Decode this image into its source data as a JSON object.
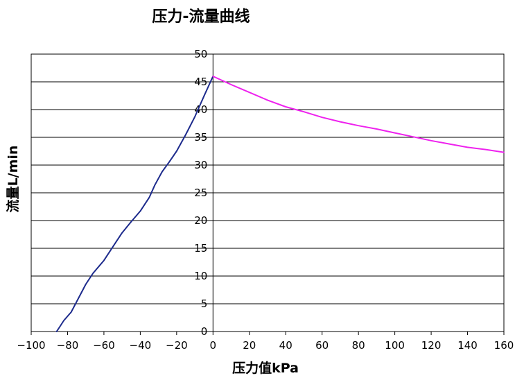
{
  "chart_data": {
    "type": "line",
    "title": "压力-流量曲线",
    "xlabel": "压力值kPa",
    "ylabel": "流量L/min",
    "xlim": [
      -100,
      160
    ],
    "ylim": [
      0,
      50
    ],
    "grid": "horizontal",
    "x_ticks": [
      "−100",
      "−80",
      "−60",
      "−40",
      "−20",
      "0",
      "20",
      "40",
      "60",
      "80",
      "100",
      "120",
      "140",
      "160"
    ],
    "y_ticks": [
      "0",
      "5",
      "10",
      "15",
      "20",
      "25",
      "30",
      "35",
      "40",
      "45",
      "50"
    ],
    "series": [
      {
        "color": "#1c2a8c",
        "points": [
          [
            -86,
            0
          ],
          [
            -84,
            1
          ],
          [
            -82,
            2
          ],
          [
            -78,
            3.5
          ],
          [
            -74,
            6
          ],
          [
            -70,
            8.5
          ],
          [
            -66,
            10.5
          ],
          [
            -60,
            12.8
          ],
          [
            -55,
            15.3
          ],
          [
            -50,
            17.8
          ],
          [
            -45,
            19.8
          ],
          [
            -40,
            21.7
          ],
          [
            -35,
            24.2
          ],
          [
            -32,
            26.4
          ],
          [
            -28,
            28.8
          ],
          [
            -24,
            30.6
          ],
          [
            -20,
            32.5
          ],
          [
            -15,
            35.5
          ],
          [
            -10,
            38.7
          ],
          [
            -5,
            42.4
          ],
          [
            0,
            46
          ]
        ]
      },
      {
        "color": "#ee22ee",
        "points": [
          [
            0,
            46
          ],
          [
            10,
            44.5
          ],
          [
            20,
            43.1
          ],
          [
            30,
            41.7
          ],
          [
            40,
            40.5
          ],
          [
            50,
            39.6
          ],
          [
            60,
            38.6
          ],
          [
            70,
            37.8
          ],
          [
            80,
            37.1
          ],
          [
            90,
            36.5
          ],
          [
            100,
            35.8
          ],
          [
            110,
            35.1
          ],
          [
            120,
            34.4
          ],
          [
            130,
            33.8
          ],
          [
            140,
            33.2
          ],
          [
            150,
            32.8
          ],
          [
            160,
            32.3
          ]
        ]
      }
    ]
  }
}
